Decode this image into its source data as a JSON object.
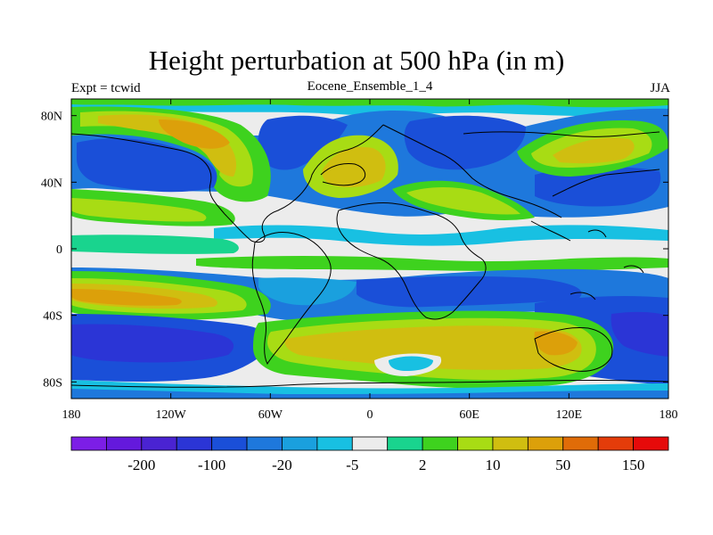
{
  "title": "Height perturbation at 500 hPa (in m)",
  "left_label": "Expt = tcwid",
  "center_label": "Eocene_Ensemble_1_4",
  "right_label": "JJA",
  "lat_ticks": [
    {
      "value": 80,
      "label": "80N"
    },
    {
      "value": 40,
      "label": "40N"
    },
    {
      "value": 0,
      "label": "0"
    },
    {
      "value": -40,
      "label": "40S"
    },
    {
      "value": -80,
      "label": "80S"
    }
  ],
  "lon_ticks": [
    {
      "value": -180,
      "label": "180"
    },
    {
      "value": -120,
      "label": "120W"
    },
    {
      "value": -60,
      "label": "60W"
    },
    {
      "value": 0,
      "label": "0"
    },
    {
      "value": 60,
      "label": "60E"
    },
    {
      "value": 120,
      "label": "120E"
    },
    {
      "value": 180,
      "label": "180"
    }
  ],
  "colorbar": {
    "colors": [
      "#7c1ee6",
      "#6419dc",
      "#4a23d2",
      "#2b35d6",
      "#1a4fd8",
      "#1e78dc",
      "#1aa0de",
      "#18c0e2",
      "#ececec",
      "#19d48e",
      "#3ed21e",
      "#a8dc14",
      "#d0be10",
      "#dca00a",
      "#e06c08",
      "#e43c0a",
      "#e60a0a"
    ],
    "labels": [
      "-200",
      "-100",
      "-20",
      "-5",
      "2",
      "10",
      "50",
      "150"
    ]
  },
  "palette": {
    "strong_neg": "#2b35d6",
    "neg": "#1a4fd8",
    "mid_neg": "#1e78dc",
    "weak_neg": "#1aa0de",
    "very_weak_neg": "#18c0e2",
    "neutral": "#ececec",
    "weak_pos": "#19d48e",
    "pos": "#3ed21e",
    "mid_pos": "#a8dc14",
    "strong_pos": "#d0be10",
    "very_strong_pos": "#dca00a",
    "extreme_pos": "#e06c08"
  }
}
